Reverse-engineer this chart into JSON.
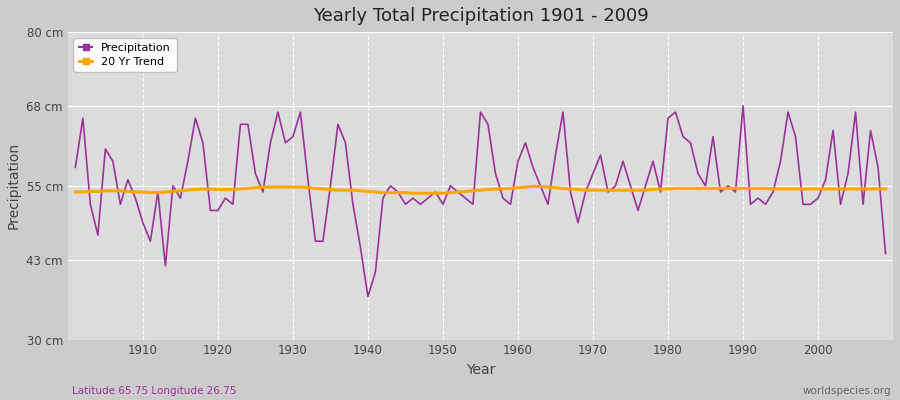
{
  "title": "Yearly Total Precipitation 1901 - 2009",
  "xlabel": "Year",
  "ylabel": "Precipitation",
  "subtitle": "Latitude 65.75 Longitude 26.75",
  "watermark": "worldspecies.org",
  "ylim": [
    30,
    80
  ],
  "yticks": [
    30,
    43,
    55,
    68,
    80
  ],
  "ytick_labels": [
    "30 cm",
    "43 cm",
    "55 cm",
    "68 cm",
    "80 cm"
  ],
  "xticks": [
    1910,
    1920,
    1930,
    1940,
    1950,
    1960,
    1970,
    1980,
    1990,
    2000
  ],
  "precip_color": "#993399",
  "trend_color": "#FFA500",
  "fig_bg_color": "#D8D8D8",
  "plot_bg_color": "#DCDCDC",
  "years": [
    1901,
    1902,
    1903,
    1904,
    1905,
    1906,
    1907,
    1908,
    1909,
    1910,
    1911,
    1912,
    1913,
    1914,
    1915,
    1916,
    1917,
    1918,
    1919,
    1920,
    1921,
    1922,
    1923,
    1924,
    1925,
    1926,
    1927,
    1928,
    1929,
    1930,
    1931,
    1932,
    1933,
    1934,
    1935,
    1936,
    1937,
    1938,
    1939,
    1940,
    1941,
    1942,
    1943,
    1944,
    1945,
    1946,
    1947,
    1948,
    1949,
    1950,
    1951,
    1952,
    1953,
    1954,
    1955,
    1956,
    1957,
    1958,
    1959,
    1960,
    1961,
    1962,
    1963,
    1964,
    1965,
    1966,
    1967,
    1968,
    1969,
    1970,
    1971,
    1972,
    1973,
    1974,
    1975,
    1976,
    1977,
    1978,
    1979,
    1980,
    1981,
    1982,
    1983,
    1984,
    1985,
    1986,
    1987,
    1988,
    1989,
    1990,
    1991,
    1992,
    1993,
    1994,
    1995,
    1996,
    1997,
    1998,
    1999,
    2000,
    2001,
    2002,
    2003,
    2004,
    2005,
    2006,
    2007,
    2008,
    2009
  ],
  "precip": [
    58,
    66,
    52,
    47,
    61,
    59,
    52,
    56,
    53,
    49,
    46,
    54,
    42,
    55,
    53,
    59,
    66,
    62,
    51,
    51,
    53,
    52,
    65,
    65,
    57,
    54,
    62,
    67,
    62,
    63,
    67,
    56,
    46,
    46,
    55,
    65,
    62,
    52,
    45,
    37,
    41,
    53,
    55,
    54,
    52,
    53,
    52,
    53,
    54,
    52,
    55,
    54,
    53,
    52,
    67,
    65,
    57,
    53,
    52,
    59,
    62,
    58,
    55,
    52,
    60,
    67,
    54,
    49,
    54,
    57,
    60,
    54,
    55,
    59,
    55,
    51,
    55,
    59,
    54,
    66,
    67,
    63,
    62,
    57,
    55,
    63,
    54,
    55,
    54,
    68,
    52,
    53,
    52,
    54,
    59,
    67,
    63,
    52,
    52,
    53,
    56,
    64,
    52,
    57,
    67,
    52,
    64,
    58,
    44
  ],
  "trend": [
    54.0,
    54.0,
    54.1,
    54.1,
    54.2,
    54.2,
    54.2,
    54.1,
    54.0,
    54.0,
    53.9,
    53.9,
    54.0,
    54.1,
    54.2,
    54.3,
    54.4,
    54.5,
    54.5,
    54.4,
    54.4,
    54.4,
    54.5,
    54.6,
    54.7,
    54.8,
    54.8,
    54.8,
    54.8,
    54.8,
    54.8,
    54.7,
    54.6,
    54.5,
    54.4,
    54.3,
    54.3,
    54.3,
    54.2,
    54.1,
    54.0,
    53.9,
    53.9,
    53.9,
    53.9,
    53.8,
    53.8,
    53.8,
    53.8,
    53.8,
    53.9,
    54.0,
    54.1,
    54.2,
    54.3,
    54.4,
    54.5,
    54.5,
    54.6,
    54.7,
    54.8,
    54.9,
    54.9,
    54.8,
    54.7,
    54.6,
    54.5,
    54.4,
    54.3,
    54.3,
    54.3,
    54.3,
    54.3,
    54.3,
    54.3,
    54.3,
    54.3,
    54.4,
    54.5,
    54.5,
    54.6,
    54.6,
    54.6,
    54.6,
    54.6,
    54.6,
    54.6,
    54.6,
    54.6,
    54.6,
    54.6,
    54.6,
    54.6,
    54.5,
    54.5,
    54.5,
    54.5,
    54.5,
    54.5,
    54.5,
    54.5,
    54.5,
    54.5,
    54.5,
    54.5,
    54.5,
    54.5,
    54.5,
    54.5
  ]
}
